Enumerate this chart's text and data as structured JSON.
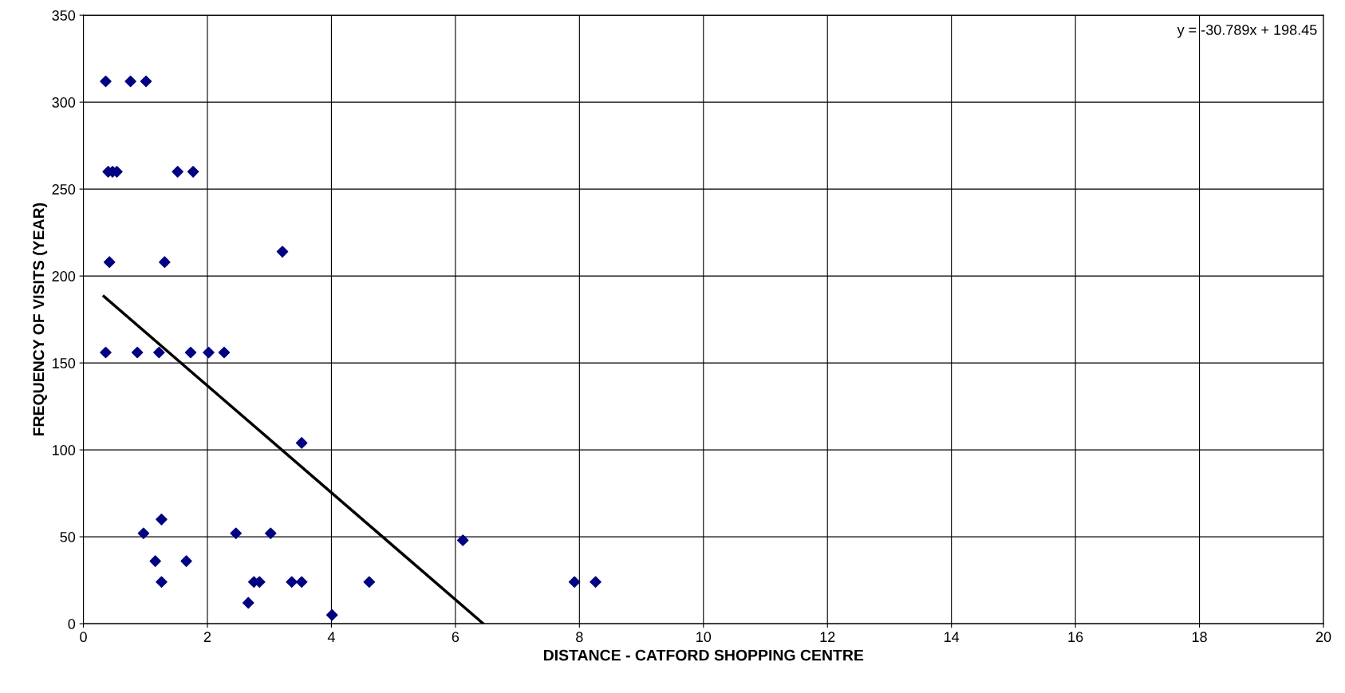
{
  "chart_data": {
    "type": "scatter",
    "xlabel": "DISTANCE - CATFORD SHOPPING CENTRE",
    "ylabel": "FREQUENCY OF VISITS (YEAR)",
    "xlim": [
      0,
      20
    ],
    "ylim": [
      0,
      350
    ],
    "xticks": [
      0,
      2,
      4,
      6,
      8,
      10,
      12,
      14,
      16,
      18,
      20
    ],
    "yticks": [
      0,
      50,
      100,
      150,
      200,
      250,
      300,
      350
    ],
    "grid": true,
    "annotations": [
      "y = -30.789x + 198.45"
    ],
    "series": [
      {
        "color": "#000080",
        "marker": "diamond",
        "x": [
          0.36,
          0.76,
          1.01,
          0.4,
          0.47,
          0.54,
          1.52,
          1.77,
          0.42,
          1.31,
          3.21,
          0.36,
          0.87,
          1.22,
          1.73,
          2.02,
          2.27,
          3.52,
          0.97,
          1.26,
          1.16,
          1.66,
          1.26,
          2.46,
          3.02,
          6.12,
          2.66,
          2.75,
          2.84,
          3.36,
          3.52,
          4.01,
          4.61,
          7.92,
          8.26
        ],
        "values": [
          312,
          312,
          312,
          260,
          260,
          260,
          260,
          260,
          208,
          208,
          214,
          156,
          156,
          156,
          156,
          156,
          156,
          104,
          52,
          60,
          36,
          36,
          24,
          52,
          52,
          48,
          12,
          24,
          24,
          24,
          24,
          5,
          24,
          24,
          24
        ]
      },
      {
        "type": "line",
        "color": "#000000",
        "x": [
          0.33,
          6.45
        ],
        "values": [
          188.3,
          0
        ]
      }
    ]
  }
}
